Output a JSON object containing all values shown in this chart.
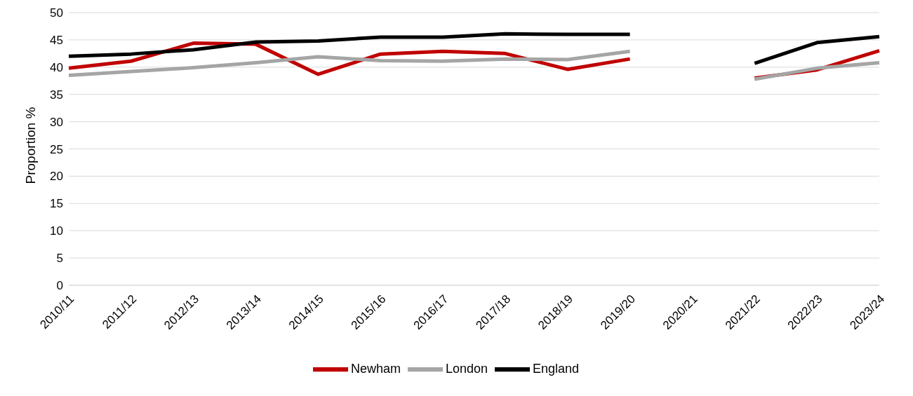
{
  "chart_data": {
    "type": "line",
    "ylabel": "Proportion %",
    "categories": [
      "2010/11",
      "2011/12",
      "2012/13",
      "2013/14",
      "2014/15",
      "2015/16",
      "2016/17",
      "2017/18",
      "2018/19",
      "2019/20",
      "2020/21",
      "2021/22",
      "2022/23",
      "2023/24"
    ],
    "series": [
      {
        "name": "Newham",
        "color": "#c00000",
        "values": [
          39.8,
          41.1,
          44.4,
          44.2,
          38.7,
          42.4,
          42.9,
          42.5,
          39.6,
          41.5,
          null,
          38.0,
          39.5,
          43.0
        ]
      },
      {
        "name": "London",
        "color": "#a5a5a5",
        "values": [
          38.5,
          39.2,
          39.9,
          40.8,
          41.9,
          41.2,
          41.1,
          41.5,
          41.4,
          42.9,
          null,
          37.8,
          39.8,
          40.8
        ]
      },
      {
        "name": "England",
        "color": "#000000",
        "values": [
          42.0,
          42.4,
          43.2,
          44.6,
          44.8,
          45.5,
          45.5,
          46.1,
          46.0,
          46.0,
          null,
          40.7,
          44.5,
          45.6
        ]
      }
    ],
    "ylim": [
      0,
      50
    ],
    "yticks": [
      0,
      5,
      10,
      15,
      20,
      25,
      30,
      35,
      40,
      45,
      50
    ],
    "grid": "y",
    "legend": "bottom",
    "marker": "none",
    "line_style": "solid"
  }
}
